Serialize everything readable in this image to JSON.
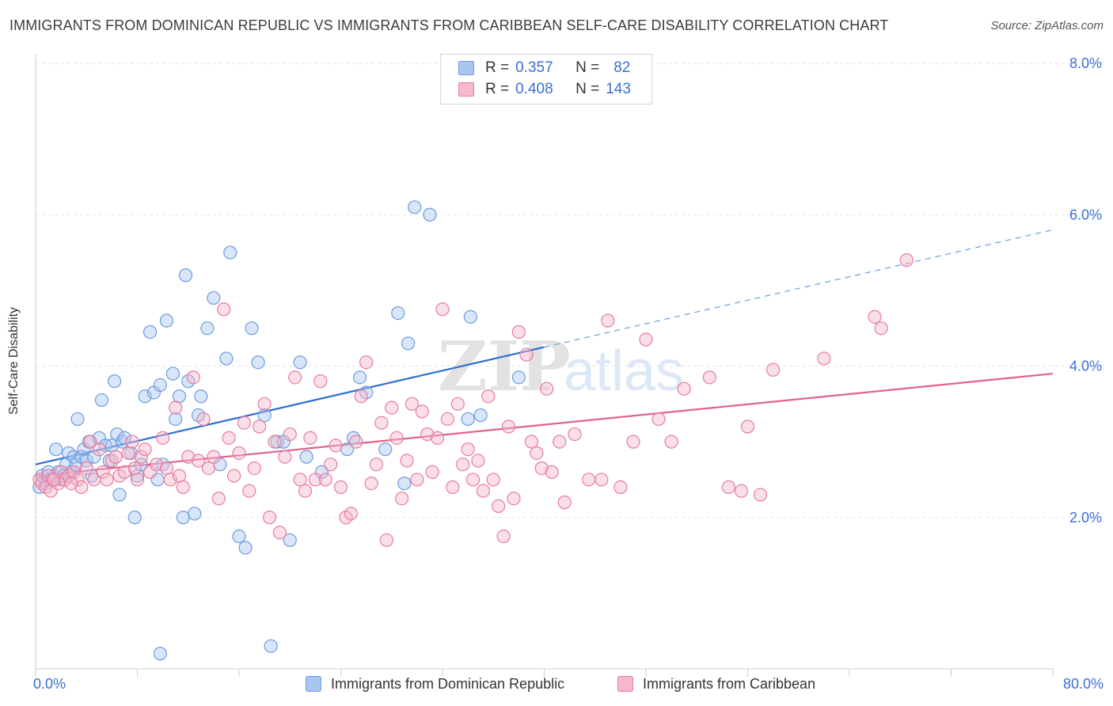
{
  "title": "IMMIGRANTS FROM DOMINICAN REPUBLIC VS IMMIGRANTS FROM CARIBBEAN SELF-CARE DISABILITY CORRELATION CHART",
  "source": "Source: ZipAtlas.com",
  "watermark": {
    "zip": "ZIP",
    "atlas": "atlas"
  },
  "legend_top": [
    {
      "r_label": "R =",
      "r_value": "0.357",
      "n_label": "N =",
      "n_value": "82",
      "color": "#aac6f0"
    },
    {
      "r_label": "R =",
      "r_value": "0.408",
      "n_label": "N =",
      "n_value": "143",
      "color": "#f5b8cc"
    }
  ],
  "chart_data": {
    "type": "scatter",
    "ylabel": "Self-Care Disability",
    "xlim": [
      0,
      80
    ],
    "ylim": [
      0,
      8
    ],
    "x_tick_labels": [
      "0.0%",
      "80.0%"
    ],
    "y_ticks": [
      2,
      4,
      6,
      8
    ],
    "y_tick_labels": [
      "2.0%",
      "4.0%",
      "6.0%",
      "8.0%"
    ],
    "grid": true,
    "series": [
      {
        "name": "Immigrants from Dominican Republic",
        "color": "#6b9de0",
        "fill": "#aac6f0",
        "trend": {
          "x0": 0,
          "y0": 2.7,
          "x1": 40,
          "y1": 4.25,
          "extend_to": 80,
          "extend_y": 5.8
        },
        "points": [
          [
            0.3,
            2.4
          ],
          [
            0.5,
            2.55
          ],
          [
            0.8,
            2.45
          ],
          [
            1,
            2.6
          ],
          [
            1.2,
            2.5
          ],
          [
            1.5,
            2.55
          ],
          [
            1.6,
            2.9
          ],
          [
            1.8,
            2.6
          ],
          [
            2,
            2.5
          ],
          [
            2.2,
            2.55
          ],
          [
            2.4,
            2.7
          ],
          [
            2.6,
            2.85
          ],
          [
            2.8,
            2.6
          ],
          [
            3,
            2.8
          ],
          [
            3.2,
            2.7
          ],
          [
            3.3,
            3.3
          ],
          [
            3.6,
            2.8
          ],
          [
            3.8,
            2.9
          ],
          [
            4,
            2.75
          ],
          [
            4.2,
            3.0
          ],
          [
            4.4,
            2.55
          ],
          [
            4.6,
            2.8
          ],
          [
            5,
            3.05
          ],
          [
            5.2,
            3.55
          ],
          [
            5.5,
            2.95
          ],
          [
            5.8,
            2.75
          ],
          [
            6,
            2.95
          ],
          [
            6.2,
            3.8
          ],
          [
            6.4,
            3.1
          ],
          [
            6.6,
            2.3
          ],
          [
            6.8,
            3.0
          ],
          [
            7,
            3.05
          ],
          [
            7.5,
            2.85
          ],
          [
            7.8,
            2.0
          ],
          [
            8,
            2.55
          ],
          [
            8.3,
            2.7
          ],
          [
            8.6,
            3.6
          ],
          [
            9,
            4.45
          ],
          [
            9.3,
            3.65
          ],
          [
            9.6,
            2.5
          ],
          [
            9.8,
            3.75
          ],
          [
            10,
            2.7
          ],
          [
            10.3,
            4.6
          ],
          [
            10.8,
            3.9
          ],
          [
            11,
            3.3
          ],
          [
            11.3,
            3.6
          ],
          [
            11.6,
            2.0
          ],
          [
            11.8,
            5.2
          ],
          [
            12,
            3.8
          ],
          [
            12.5,
            2.05
          ],
          [
            12.8,
            3.35
          ],
          [
            13,
            3.6
          ],
          [
            13.5,
            4.5
          ],
          [
            14,
            4.9
          ],
          [
            14.5,
            2.7
          ],
          [
            15,
            4.1
          ],
          [
            15.3,
            5.5
          ],
          [
            16,
            1.75
          ],
          [
            16.5,
            1.6
          ],
          [
            17,
            4.5
          ],
          [
            17.5,
            4.05
          ],
          [
            18,
            3.35
          ],
          [
            18.5,
            0.3
          ],
          [
            19,
            3.0
          ],
          [
            19.5,
            3.0
          ],
          [
            20,
            1.7
          ],
          [
            20.8,
            4.05
          ],
          [
            21.3,
            2.8
          ],
          [
            22.5,
            2.6
          ],
          [
            24.5,
            2.9
          ],
          [
            25,
            3.05
          ],
          [
            25.5,
            3.85
          ],
          [
            26,
            3.65
          ],
          [
            27.5,
            2.9
          ],
          [
            28.5,
            4.7
          ],
          [
            29,
            2.45
          ],
          [
            29.3,
            4.3
          ],
          [
            29.8,
            6.1
          ],
          [
            31,
            6.0
          ],
          [
            34,
            3.3
          ],
          [
            35,
            3.35
          ],
          [
            38,
            3.85
          ],
          [
            34.2,
            4.65
          ],
          [
            9.8,
            0.2
          ]
        ]
      },
      {
        "name": "Immigrants from Caribbean",
        "color": "#e77c9f",
        "fill": "#f5b8cc",
        "trend": {
          "x0": 0,
          "y0": 2.55,
          "x1": 80,
          "y1": 3.9
        },
        "points": [
          [
            0.3,
            2.5
          ],
          [
            0.5,
            2.45
          ],
          [
            0.8,
            2.4
          ],
          [
            1,
            2.55
          ],
          [
            1.2,
            2.35
          ],
          [
            1.5,
            2.5
          ],
          [
            1.8,
            2.45
          ],
          [
            2,
            2.6
          ],
          [
            2.3,
            2.5
          ],
          [
            2.6,
            2.55
          ],
          [
            3,
            2.6
          ],
          [
            3.3,
            2.5
          ],
          [
            3.6,
            2.4
          ],
          [
            4,
            2.65
          ],
          [
            4.3,
            3.0
          ],
          [
            4.6,
            2.5
          ],
          [
            5,
            2.9
          ],
          [
            5.3,
            2.6
          ],
          [
            5.6,
            2.5
          ],
          [
            6,
            2.75
          ],
          [
            6.3,
            2.8
          ],
          [
            6.6,
            2.55
          ],
          [
            7,
            2.6
          ],
          [
            7.3,
            2.85
          ],
          [
            7.6,
            3.0
          ],
          [
            8,
            2.5
          ],
          [
            8.3,
            2.8
          ],
          [
            8.6,
            2.9
          ],
          [
            9,
            2.6
          ],
          [
            9.5,
            2.7
          ],
          [
            10,
            3.05
          ],
          [
            10.3,
            2.65
          ],
          [
            10.6,
            2.5
          ],
          [
            11,
            3.45
          ],
          [
            11.3,
            2.55
          ],
          [
            11.6,
            2.4
          ],
          [
            12,
            2.8
          ],
          [
            12.4,
            3.85
          ],
          [
            12.8,
            2.75
          ],
          [
            13.2,
            3.3
          ],
          [
            13.6,
            2.65
          ],
          [
            14,
            2.8
          ],
          [
            14.4,
            2.25
          ],
          [
            14.8,
            4.75
          ],
          [
            15.2,
            3.05
          ],
          [
            15.6,
            2.55
          ],
          [
            16,
            2.85
          ],
          [
            16.4,
            3.25
          ],
          [
            16.8,
            2.35
          ],
          [
            17.2,
            2.65
          ],
          [
            17.6,
            3.2
          ],
          [
            18,
            3.5
          ],
          [
            18.4,
            2.0
          ],
          [
            18.8,
            3.0
          ],
          [
            19.2,
            1.8
          ],
          [
            19.6,
            2.8
          ],
          [
            20,
            3.1
          ],
          [
            20.4,
            3.85
          ],
          [
            20.8,
            2.5
          ],
          [
            21.2,
            2.35
          ],
          [
            21.6,
            3.05
          ],
          [
            22,
            2.5
          ],
          [
            22.4,
            3.8
          ],
          [
            22.8,
            2.5
          ],
          [
            23.2,
            2.7
          ],
          [
            23.6,
            2.95
          ],
          [
            24,
            2.4
          ],
          [
            24.4,
            2.0
          ],
          [
            24.8,
            2.05
          ],
          [
            25.2,
            3.0
          ],
          [
            25.6,
            3.6
          ],
          [
            26,
            4.05
          ],
          [
            26.4,
            2.45
          ],
          [
            26.8,
            2.7
          ],
          [
            27.2,
            3.25
          ],
          [
            27.6,
            1.7
          ],
          [
            28,
            3.45
          ],
          [
            28.4,
            3.05
          ],
          [
            28.8,
            2.25
          ],
          [
            29.2,
            2.75
          ],
          [
            29.6,
            3.5
          ],
          [
            30,
            2.5
          ],
          [
            30.4,
            3.4
          ],
          [
            30.8,
            3.1
          ],
          [
            31.2,
            2.6
          ],
          [
            31.6,
            3.05
          ],
          [
            32,
            4.75
          ],
          [
            32.4,
            3.3
          ],
          [
            32.8,
            2.4
          ],
          [
            33.2,
            3.5
          ],
          [
            33.6,
            2.7
          ],
          [
            34,
            2.9
          ],
          [
            34.4,
            2.5
          ],
          [
            34.8,
            2.75
          ],
          [
            35.2,
            2.35
          ],
          [
            35.6,
            3.6
          ],
          [
            36,
            2.5
          ],
          [
            36.4,
            2.15
          ],
          [
            36.8,
            1.75
          ],
          [
            37.2,
            3.2
          ],
          [
            37.6,
            2.25
          ],
          [
            38,
            4.45
          ],
          [
            38.6,
            4.15
          ],
          [
            39,
            3.0
          ],
          [
            39.4,
            2.85
          ],
          [
            39.8,
            2.65
          ],
          [
            40.2,
            3.7
          ],
          [
            40.6,
            2.6
          ],
          [
            41.2,
            3.0
          ],
          [
            41.6,
            2.2
          ],
          [
            42.4,
            3.1
          ],
          [
            43.5,
            2.5
          ],
          [
            44.5,
            2.5
          ],
          [
            45,
            4.6
          ],
          [
            46,
            2.4
          ],
          [
            47,
            3.0
          ],
          [
            48,
            4.35
          ],
          [
            49,
            3.3
          ],
          [
            50,
            3.0
          ],
          [
            51,
            3.7
          ],
          [
            53,
            3.85
          ],
          [
            54.5,
            2.4
          ],
          [
            56,
            3.2
          ],
          [
            57,
            2.3
          ],
          [
            58,
            3.95
          ],
          [
            62,
            4.1
          ],
          [
            66,
            4.65
          ],
          [
            66.5,
            4.5
          ],
          [
            68.5,
            5.4
          ],
          [
            55.5,
            2.35
          ],
          [
            1.4,
            2.5
          ],
          [
            2.8,
            2.45
          ],
          [
            7.8,
            2.65
          ]
        ]
      }
    ]
  },
  "bottom_legend": [
    {
      "label": "Immigrants from Dominican Republic",
      "color": "#aac6f0",
      "stroke": "#6b9de0"
    },
    {
      "label": "Immigrants from Caribbean",
      "color": "#f5b8cc",
      "stroke": "#e77c9f"
    }
  ]
}
